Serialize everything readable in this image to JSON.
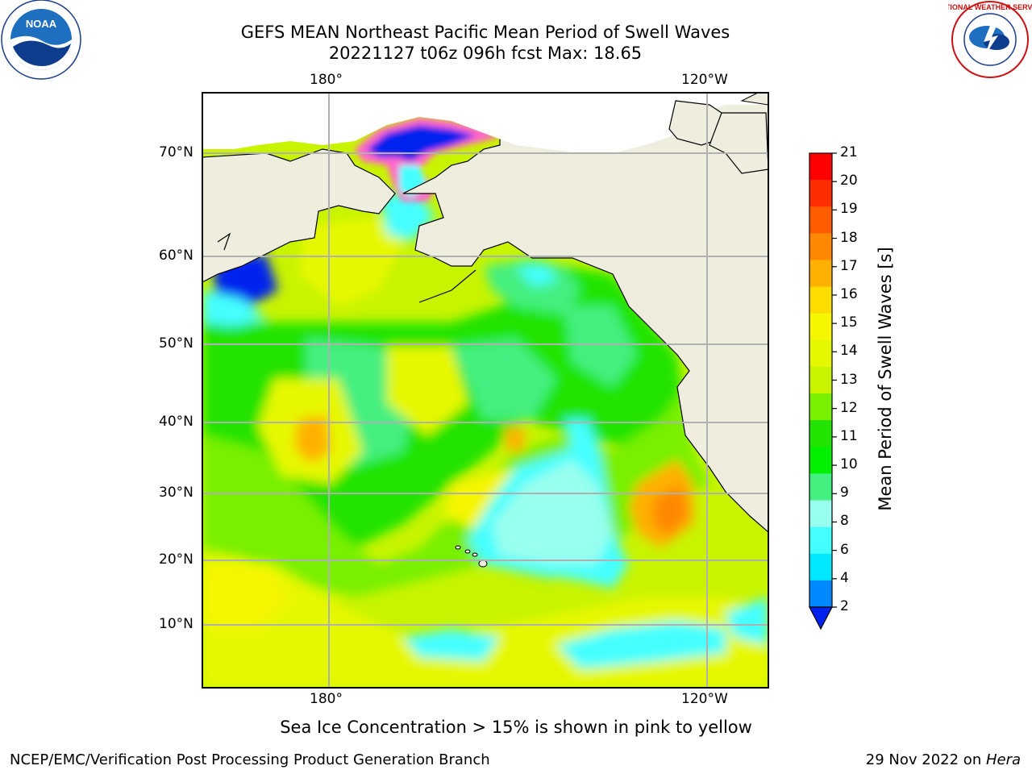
{
  "title_line1": "GEFS MEAN Northeast Pacific Mean Period of Swell Waves",
  "title_line2": "20221127 t06z 096h fcst   Max: 18.65",
  "caption": "Sea Ice Concentration > 15% is shown in pink to yellow",
  "footer_left": "NCEP/EMC/Verification Post Processing Product Generation Branch",
  "footer_date": "29 Nov 2022 on ",
  "footer_machine": "Hera",
  "logos": {
    "left": "NOAA",
    "right": "NATIONAL WEATHER SERVICE"
  },
  "map": {
    "lon_labels_top": [
      "180°",
      "120°W"
    ],
    "lon_labels_bottom": [
      "180°",
      "120°W"
    ],
    "lat_labels": [
      "70°N",
      "60°N",
      "50°N",
      "40°N",
      "30°N",
      "20°N",
      "10°N"
    ],
    "land_color": "#efedde",
    "grid_color": "#b0b0b0"
  },
  "colorbar": {
    "label": "Mean Period of Swell Waves [s]",
    "ticks": [
      "21",
      "20",
      "19",
      "18",
      "17",
      "16",
      "15",
      "14",
      "13",
      "12",
      "11",
      "10",
      "9",
      "8",
      "6",
      "4",
      "2"
    ],
    "colors": [
      "#ff0000",
      "#ff2e00",
      "#ff5c00",
      "#ff8800",
      "#ffb000",
      "#ffdd00",
      "#f6f600",
      "#e6f800",
      "#c8f400",
      "#78f000",
      "#22e400",
      "#00f000",
      "#44f080",
      "#99ffee",
      "#44ffff",
      "#00e8ff",
      "#0088ff"
    ],
    "under_color": "#0022ee"
  }
}
